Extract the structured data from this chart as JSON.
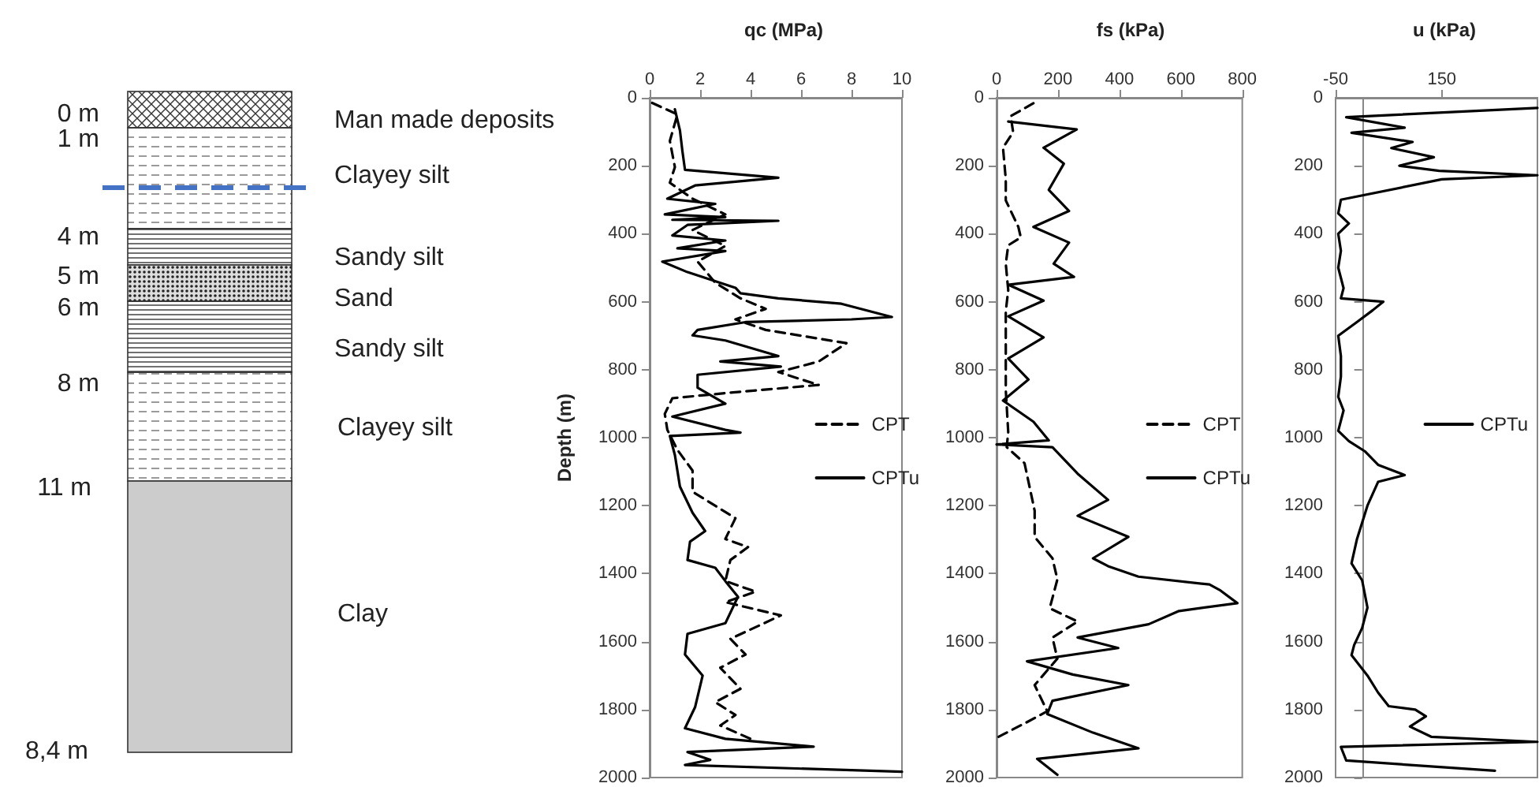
{
  "chart_data": [
    {
      "type": "other",
      "annotations": [
        "0 m",
        "Man made deposits",
        "1 m",
        "Clayey silt",
        "4 m",
        "Sandy silt",
        "5 m",
        "Sand",
        "6 m",
        "Sandy silt",
        "8 m",
        "Clayey silt",
        "11 m",
        "Clay",
        "8,4 m"
      ]
    },
    {
      "type": "line",
      "title": "qc (MPa)",
      "ylabel": "Depth (m)",
      "xlim": [
        0,
        10
      ],
      "xticks": [
        0,
        2,
        4,
        6,
        8,
        10
      ],
      "ylim": [
        2000,
        0
      ],
      "yticks": [
        0,
        200,
        400,
        600,
        800,
        1000,
        1200,
        1400,
        1600,
        1800,
        2000
      ],
      "grid": false,
      "marker": "none",
      "legend": "right",
      "series": [
        {
          "name": "CPT",
          "color": "#000000",
          "line_style": "dashed",
          "x": [
            0.1,
            1.1,
            0.8,
            1.0,
            0.8,
            1.7,
            3.0,
            1.7,
            3.0,
            1.9,
            2.6,
            3.6,
            4.6,
            3.4,
            4.6,
            7.8,
            6.7,
            5.1,
            6.7,
            3.0,
            0.9,
            0.6,
            0.7,
            1.1,
            1.7,
            1.7,
            3.4,
            3.0,
            3.9,
            3.2,
            3.0,
            4.2,
            3.0,
            5.2,
            3.2,
            3.8,
            2.8,
            3.6,
            2.6,
            3.4,
            2.8,
            4.0
          ],
          "values": [
            15,
            49,
            127,
            204,
            250,
            297,
            343,
            389,
            436,
            482,
            544,
            590,
            621,
            652,
            683,
            722,
            776,
            807,
            845,
            869,
            884,
            930,
            977,
            1036,
            1097,
            1159,
            1237,
            1298,
            1322,
            1360,
            1422,
            1453,
            1484,
            1523,
            1592,
            1638,
            1677,
            1739,
            1778,
            1816,
            1847,
            1886
          ]
        },
        {
          "name": "CPTu",
          "color": "#000000",
          "line_style": "solid",
          "x": [
            1.0,
            1.2,
            1.3,
            1.4,
            5.1,
            1.8,
            0.7,
            2.6,
            0.6,
            3.0,
            0.9,
            5.1,
            1.5,
            0.9,
            3.0,
            1.1,
            3.0,
            0.5,
            1.5,
            3.4,
            3.6,
            5.1,
            7.6,
            9.6,
            8.0,
            3.8,
            1.9,
            1.7,
            3.0,
            5.1,
            2.8,
            5.2,
            1.9,
            1.9,
            3.0,
            0.9,
            3.0,
            3.6,
            0.8,
            1.0,
            1.2,
            1.7,
            2.2,
            1.6,
            1.5,
            2.6,
            3.0,
            3.5,
            3.0,
            1.5,
            1.4,
            2.1,
            1.8,
            1.4,
            3.0,
            6.5,
            1.5,
            2.4,
            1.4,
            10
          ],
          "values": [
            34,
            96,
            158,
            212,
            235,
            258,
            297,
            312,
            343,
            351,
            359,
            362,
            374,
            405,
            420,
            443,
            451,
            482,
            513,
            559,
            575,
            590,
            606,
            645,
            652,
            660,
            683,
            699,
            714,
            760,
            776,
            791,
            815,
            853,
            900,
            938,
            977,
            985,
            995,
            1051,
            1144,
            1221,
            1275,
            1306,
            1360,
            1383,
            1422,
            1468,
            1546,
            1577,
            1638,
            1700,
            1793,
            1855,
            1886,
            1909,
            1925,
            1948,
            1963,
            1983
          ]
        }
      ]
    },
    {
      "type": "line",
      "title": "fs (kPa)",
      "xlim": [
        0,
        800
      ],
      "xticks": [
        0,
        200,
        400,
        600,
        800
      ],
      "ylim": [
        2000,
        0
      ],
      "yticks": [
        0,
        200,
        400,
        600,
        800,
        1000,
        1200,
        1400,
        1600,
        1800,
        2000
      ],
      "grid": false,
      "marker": "none",
      "legend": "right",
      "series": [
        {
          "name": "CPT",
          "color": "#000000",
          "line_style": "dashed",
          "x": [
            120,
            46,
            54,
            21,
            30,
            30,
            71,
            79,
            38,
            30,
            38,
            30,
            30,
            30,
            38,
            33,
            91,
            124,
            124,
            182,
            198,
            173,
            264,
            182,
            198,
            124,
            165,
            99,
            0
          ],
          "values": [
            16,
            54,
            101,
            147,
            240,
            302,
            380,
            411,
            434,
            488,
            566,
            628,
            767,
            860,
            984,
            1028,
            1075,
            1215,
            1292,
            1355,
            1417,
            1502,
            1541,
            1588,
            1650,
            1728,
            1805,
            1837,
            1883
          ]
        },
        {
          "name": "CPTu",
          "color": "#000000",
          "line_style": "solid",
          "x": [
            38,
            261,
            153,
            219,
            170,
            236,
            120,
            236,
            186,
            252,
            38,
            153,
            38,
            153,
            38,
            104,
            21,
            120,
            170,
            0,
            182,
            264,
            363,
            264,
            429,
            314,
            363,
            462,
            693,
            726,
            784,
            594,
            495,
            264,
            396,
            99,
            248,
            429,
            182,
            165,
            314,
            462,
            132,
            198
          ],
          "values": [
            70,
            93,
            147,
            194,
            271,
            333,
            380,
            426,
            488,
            527,
            550,
            597,
            643,
            705,
            767,
            829,
            891,
            953,
            1008,
            1020,
            1028,
            1106,
            1183,
            1230,
            1292,
            1355,
            1378,
            1409,
            1432,
            1448,
            1487,
            1510,
            1549,
            1588,
            1619,
            1658,
            1697,
            1728,
            1774,
            1813,
            1868,
            1914,
            1945,
            1992
          ]
        }
      ]
    },
    {
      "type": "line",
      "title": "u (kPa)",
      "xlim": [
        -50,
        330
      ],
      "xticks": [
        -50,
        150
      ],
      "ylim": [
        2000,
        0
      ],
      "yticks": [
        0,
        200,
        400,
        600,
        800,
        1000,
        1200,
        1400,
        1600,
        1800,
        2000
      ],
      "grid": false,
      "marker": "none",
      "legend": "right",
      "series": [
        {
          "name": "CPTu",
          "color": "#000000",
          "line_style": "solid",
          "x": [
            330,
            -30,
            80,
            -20,
            95,
            55,
            135,
            70,
            145,
            330,
            150,
            -40,
            -45,
            -25,
            -45,
            -40,
            -45,
            -35,
            -40,
            40,
            20,
            -10,
            -45,
            -40,
            -40,
            -45,
            -35,
            -45,
            -25,
            5,
            30,
            80,
            30,
            10,
            0,
            -10,
            -20,
            0,
            10,
            0,
            -15,
            -20,
            10,
            30,
            50,
            100,
            120,
            90,
            130,
            330,
            -40,
            -30,
            250
          ],
          "values": [
            30,
            57,
            88,
            103,
            130,
            148,
            175,
            200,
            215,
            228,
            240,
            300,
            340,
            370,
            400,
            450,
            500,
            560,
            590,
            600,
            625,
            660,
            700,
            760,
            820,
            880,
            920,
            980,
            1010,
            1040,
            1080,
            1110,
            1130,
            1200,
            1250,
            1300,
            1370,
            1420,
            1500,
            1560,
            1610,
            1640,
            1700,
            1750,
            1790,
            1800,
            1820,
            1850,
            1880,
            1895,
            1910,
            1950,
            1980
          ]
        }
      ]
    }
  ]
}
